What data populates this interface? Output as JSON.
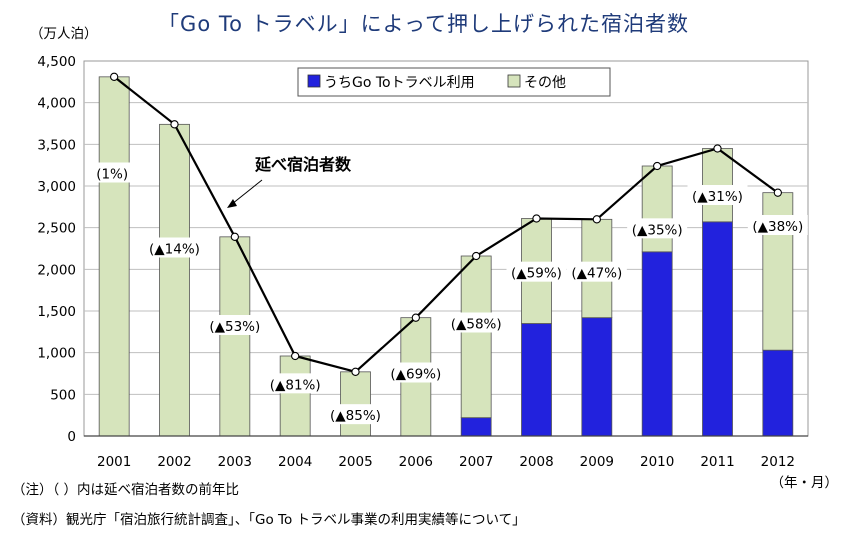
{
  "chart_data": {
    "type": "bar",
    "title": "「Go To トラベル」によって押し上げられた宿泊者数",
    "ylabel": "（万人泊）",
    "xlabel": "（年・月）",
    "ylim": [
      0,
      4500
    ],
    "yticks": [
      "0",
      "500",
      "1,000",
      "1,500",
      "2,000",
      "2,500",
      "3,000",
      "3,500",
      "4,000",
      "4,500"
    ],
    "ytick_values": [
      0,
      500,
      1000,
      1500,
      2000,
      2500,
      3000,
      3500,
      4000,
      4500
    ],
    "categories": [
      "2001",
      "2002",
      "2003",
      "2004",
      "2005",
      "2006",
      "2007",
      "2008",
      "2009",
      "2010",
      "2011",
      "2012"
    ],
    "grid": "horizontal",
    "legend_position": "top-right",
    "series": [
      {
        "name": "うちGo Toトラベル利用",
        "kind": "bar-stacked",
        "color": "#2222dd",
        "values": [
          0,
          0,
          0,
          0,
          0,
          0,
          220,
          1350,
          1420,
          2210,
          2570,
          1030
        ]
      },
      {
        "name": "その他",
        "kind": "bar-stacked",
        "color": "#d6e4bc",
        "values": [
          4310,
          3740,
          2390,
          960,
          770,
          1420,
          1940,
          1260,
          1180,
          1030,
          880,
          1890
        ]
      },
      {
        "name": "延べ宿泊者数",
        "kind": "line",
        "color": "#000000",
        "values": [
          4310,
          3740,
          2390,
          960,
          770,
          1420,
          2160,
          2610,
          2600,
          3240,
          3450,
          2920
        ]
      }
    ],
    "data_labels": [
      "(1%)",
      "(▲14%)",
      "(▲53%)",
      "(▲81%)",
      "(▲85%)",
      "(▲69%)",
      "(▲58%)",
      "(▲59%)",
      "(▲47%)",
      "(▲35%)",
      "(▲31%)",
      "(▲38%)"
    ],
    "annotation": "延べ宿泊者数"
  },
  "notes": {
    "note": "（注）（ ）内は延べ宿泊者数の前年比",
    "source": "（資料）観光庁「宿泊旅行統計調査」、「Go To トラベル事業の利用実績等について」"
  }
}
